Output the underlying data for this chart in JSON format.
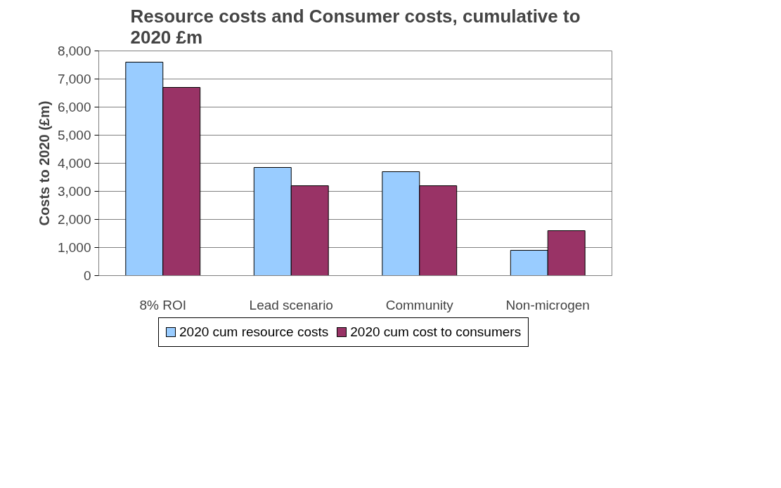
{
  "chart_data": {
    "type": "bar",
    "title": "Resource costs and Consumer costs, cumulative to 2020 £m",
    "ylabel": "Costs to 2020 (£m)",
    "categories": [
      "8% ROI",
      "Lead scenario",
      "Community",
      "Non-microgen"
    ],
    "series": [
      {
        "name": "2020 cum resource costs",
        "color": "#99ccff",
        "values": [
          7600,
          3850,
          3700,
          900
        ]
      },
      {
        "name": "2020 cum cost to consumers",
        "color": "#993366",
        "values": [
          6700,
          3200,
          3200,
          1600
        ]
      }
    ],
    "ylim": [
      0,
      8000
    ],
    "yticks": [
      0,
      {
        "value": 1000,
        "label": "1,000"
      },
      {
        "value": 2000,
        "label": "2,000"
      },
      {
        "value": 3000,
        "label": "3,000"
      },
      {
        "value": 4000,
        "label": "4,000"
      },
      {
        "value": 5000,
        "label": "5,000"
      },
      {
        "value": 6000,
        "label": "6,000"
      },
      {
        "value": 7000,
        "label": "7,000"
      },
      {
        "value": 8000,
        "label": "8,000"
      }
    ],
    "grid": "y",
    "legend": "bottom"
  }
}
